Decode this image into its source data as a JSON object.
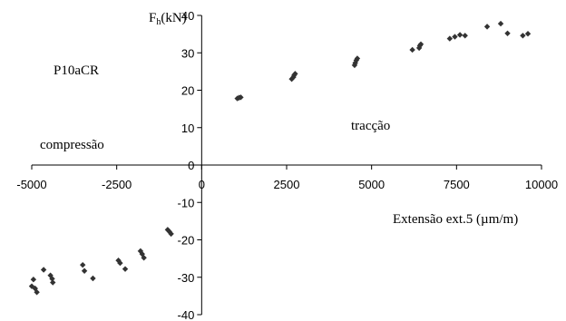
{
  "chart_data": {
    "type": "scatter",
    "ylabel_main": "F",
    "ylabel_sub": "h",
    "ylabel_unit": "(kN)",
    "xlabel": "Extensão ext.5 (µm/m)",
    "annotations": {
      "specimen": "P10aCR",
      "tension": "tracção",
      "compression": "compressão"
    },
    "xlim": [
      -5000,
      10000
    ],
    "ylim": [
      -40,
      40
    ],
    "x_ticks": [
      -5000,
      -2500,
      0,
      2500,
      5000,
      7500,
      10000
    ],
    "y_ticks": [
      40,
      30,
      20,
      10,
      0,
      -10,
      -20,
      -30,
      -40
    ],
    "x_tick_labels": [
      "-5000",
      "-2500",
      "0",
      "2500",
      "5000",
      "7500",
      "10000"
    ],
    "y_tick_labels": [
      "40",
      "30",
      "20",
      "10",
      "0",
      "-10",
      "-20",
      "-30",
      "-40"
    ],
    "grid": false,
    "marker_color": "#333333",
    "points": [
      {
        "x": 1050,
        "y": 17.8
      },
      {
        "x": 1100,
        "y": 18.0
      },
      {
        "x": 1150,
        "y": 18.1
      },
      {
        "x": 2650,
        "y": 23.0
      },
      {
        "x": 2700,
        "y": 23.5
      },
      {
        "x": 2720,
        "y": 24.0
      },
      {
        "x": 2750,
        "y": 24.4
      },
      {
        "x": 4500,
        "y": 26.7
      },
      {
        "x": 4520,
        "y": 27.3
      },
      {
        "x": 4550,
        "y": 28.0
      },
      {
        "x": 4580,
        "y": 28.5
      },
      {
        "x": 6200,
        "y": 30.8
      },
      {
        "x": 6400,
        "y": 31.3
      },
      {
        "x": 6420,
        "y": 31.9
      },
      {
        "x": 6450,
        "y": 32.3
      },
      {
        "x": 7300,
        "y": 33.8
      },
      {
        "x": 7450,
        "y": 34.3
      },
      {
        "x": 7600,
        "y": 34.8
      },
      {
        "x": 7750,
        "y": 34.6
      },
      {
        "x": 8400,
        "y": 37.0
      },
      {
        "x": 8800,
        "y": 37.8
      },
      {
        "x": 9000,
        "y": 35.2
      },
      {
        "x": 9450,
        "y": 34.6
      },
      {
        "x": 9600,
        "y": 35.1
      },
      {
        "x": -1000,
        "y": -17.3
      },
      {
        "x": -950,
        "y": -17.8
      },
      {
        "x": -900,
        "y": -18.4
      },
      {
        "x": -1800,
        "y": -23.0
      },
      {
        "x": -1750,
        "y": -23.8
      },
      {
        "x": -1700,
        "y": -24.8
      },
      {
        "x": -2450,
        "y": -25.5
      },
      {
        "x": -2400,
        "y": -26.2
      },
      {
        "x": -2250,
        "y": -27.8
      },
      {
        "x": -3500,
        "y": -26.7
      },
      {
        "x": -3450,
        "y": -28.3
      },
      {
        "x": -3200,
        "y": -30.3
      },
      {
        "x": -4650,
        "y": -28.0
      },
      {
        "x": -4450,
        "y": -29.5
      },
      {
        "x": -4400,
        "y": -30.4
      },
      {
        "x": -4380,
        "y": -31.4
      },
      {
        "x": -4950,
        "y": -30.6
      },
      {
        "x": -5000,
        "y": -32.4
      },
      {
        "x": -4900,
        "y": -33.0
      },
      {
        "x": -4850,
        "y": -34.0
      }
    ]
  }
}
